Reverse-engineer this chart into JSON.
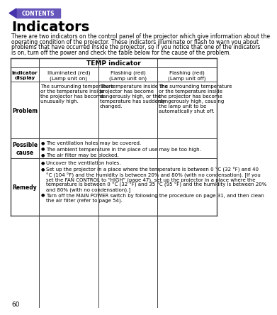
{
  "page_num": "60",
  "title": "Indicators",
  "intro_text": "There are two indicators on the control panel of the projector which give information about the operating condition of the projector. These indicators illuminate or flash to warn you about problems that have occurred inside the projector, so if you notice that one of the indicators is on, turn off the power and check the table below for the cause of the problem.",
  "table_title": "TEMP indicator",
  "col_headers_0": "Indicator\ndisplay",
  "col_headers_1": "Illuminated (red)\n(Lamp unit on)",
  "col_headers_2": "Flashing (red)\n(Lamp unit on)",
  "col_headers_3": "Flashing (red)\n(Lamp unit off)",
  "problem_col1": "The surrounding temperature or the temperature inside the projector has become unusually high.",
  "problem_col2": "The temperature inside the projector has become dangerously high, or the temperature has suddenly changed.",
  "problem_col3": "The surrounding temperature or the temperature inside the projector has become dangerously high, causing the lamp unit to be automatically shut off.",
  "cause_line1": "The ventilation holes may be covered.",
  "cause_line2": "The ambient temperature in the place of use may be too high.",
  "cause_line3": "The air filter may be blocked.",
  "remedy_b1": "Uncover the ventilation holes.",
  "remedy_b2": "Set up the projector in a place where the temperature is between 0 °C (32 °F) and 40 °C (104 °F) and the humidity is between 20% and 80% (with no condensation). [If you set the FAN CONTROL to “HIGH” (page 47), set up the projector in a place where the temperature is between 0 °C (32 °F) and 35 °C (95 °F) and the humidity is between 20% and 80% (with no condensation).]",
  "remedy_b3": "Turn off the MAIN POWER switch by following the procedure on page 31, and then clean the air filter (refer to page 54).",
  "bg_color": "#ffffff",
  "contents_bg": "#6655bb",
  "arrow_color": "#4433aa",
  "link_color": "#cc2200",
  "title_color": "#000000",
  "border_color": "#555555"
}
